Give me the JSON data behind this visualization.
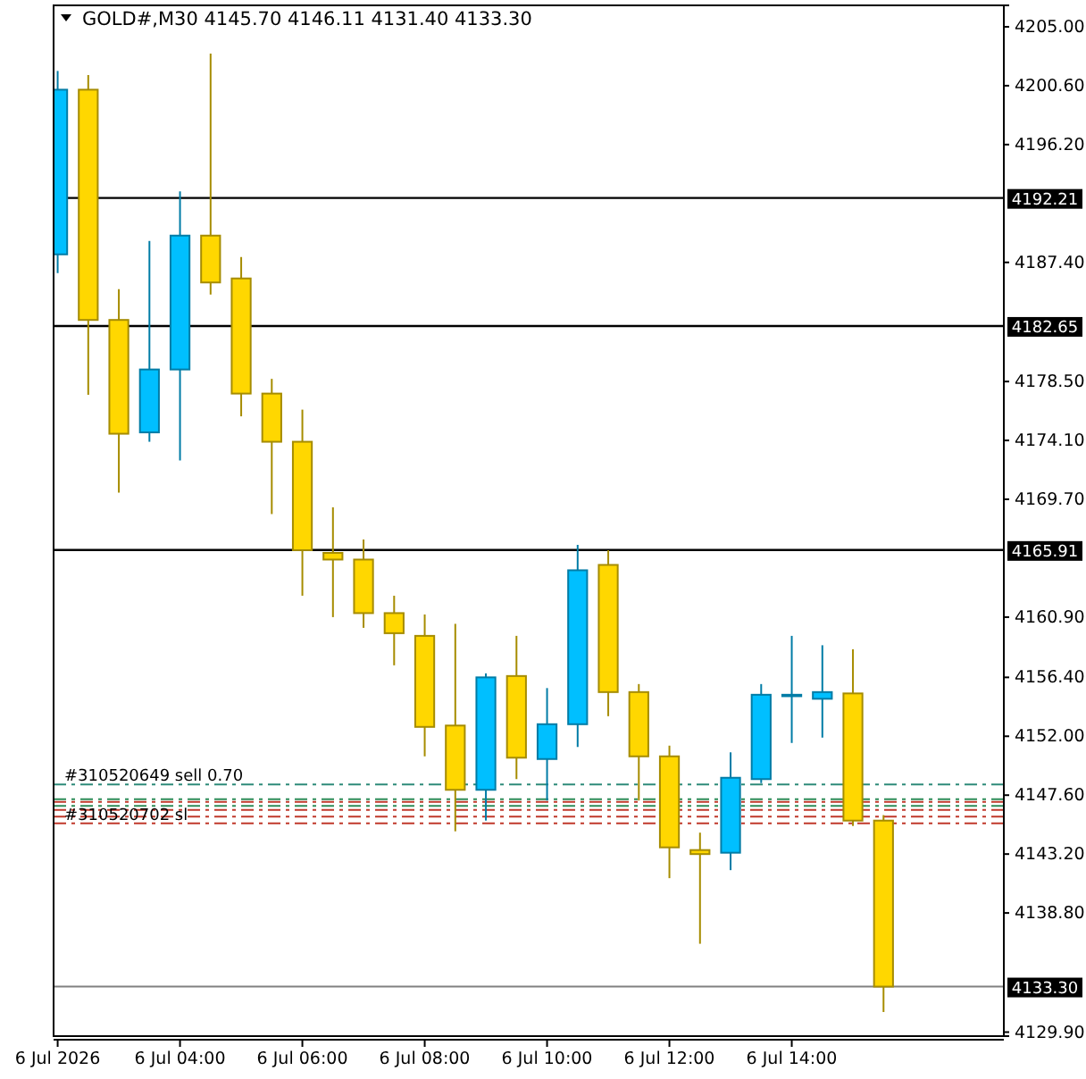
{
  "chart_data": {
    "type": "candlestick",
    "title": "GOLD#,M30  4145.70 4146.11 4131.40 4133.30",
    "x": [
      "2026-07-06T02:00",
      "2026-07-06T02:30",
      "2026-07-06T03:00",
      "2026-07-06T03:30",
      "2026-07-06T04:00",
      "2026-07-06T04:30",
      "2026-07-06T05:00",
      "2026-07-06T05:30",
      "2026-07-06T06:00",
      "2026-07-06T06:30",
      "2026-07-06T07:00",
      "2026-07-06T07:30",
      "2026-07-06T08:00",
      "2026-07-06T08:30",
      "2026-07-06T09:00",
      "2026-07-06T09:30",
      "2026-07-06T10:00",
      "2026-07-06T10:30",
      "2026-07-06T11:00",
      "2026-07-06T11:30",
      "2026-07-06T12:00",
      "2026-07-06T12:30",
      "2026-07-06T13:00",
      "2026-07-06T13:30",
      "2026-07-06T14:00",
      "2026-07-06T14:30",
      "2026-07-06T15:00",
      "2026-07-06T15:30"
    ],
    "ohlc": [
      [
        4188.0,
        4201.7,
        4186.6,
        4200.3
      ],
      [
        4200.3,
        4201.4,
        4177.5,
        4183.1
      ],
      [
        4183.1,
        4185.4,
        4170.2,
        4174.6
      ],
      [
        4174.7,
        4189.0,
        4174.0,
        4179.4
      ],
      [
        4179.4,
        4192.7,
        4172.6,
        4189.4
      ],
      [
        4189.4,
        4203.0,
        4185.0,
        4185.9
      ],
      [
        4186.2,
        4187.8,
        4175.9,
        4177.6
      ],
      [
        4177.6,
        4178.7,
        4168.6,
        4174.0
      ],
      [
        4174.0,
        4176.4,
        4162.5,
        4165.9
      ],
      [
        4165.7,
        4169.1,
        4160.9,
        4165.2
      ],
      [
        4165.2,
        4166.7,
        4160.1,
        4161.2
      ],
      [
        4161.2,
        4162.5,
        4157.3,
        4159.7
      ],
      [
        4159.5,
        4161.1,
        4150.5,
        4152.7
      ],
      [
        4152.8,
        4160.4,
        4144.9,
        4148.0
      ],
      [
        4148.0,
        4156.7,
        4145.7,
        4156.4
      ],
      [
        4156.5,
        4159.5,
        4148.8,
        4150.4
      ],
      [
        4150.3,
        4155.6,
        4147.2,
        4152.9
      ],
      [
        4152.9,
        4166.3,
        4151.2,
        4164.4
      ],
      [
        4164.8,
        4165.9,
        4153.5,
        4155.3
      ],
      [
        4155.3,
        4155.9,
        4147.2,
        4150.5
      ],
      [
        4150.5,
        4151.3,
        4141.4,
        4143.7
      ],
      [
        4143.5,
        4144.8,
        4136.5,
        4143.2
      ],
      [
        4143.3,
        4150.8,
        4142.0,
        4148.9
      ],
      [
        4148.8,
        4155.9,
        4148.5,
        4155.1
      ],
      [
        4155.1,
        4159.5,
        4151.5,
        4155.1
      ],
      [
        4154.8,
        4158.8,
        4151.9,
        4155.3
      ],
      [
        4155.2,
        4158.5,
        4145.3,
        4145.7
      ],
      [
        4145.7,
        4146.11,
        4131.4,
        4133.3
      ]
    ],
    "colors": [
      "#00bfff",
      "#ffd700",
      "#ffd700",
      "#00bfff",
      "#00bfff",
      "#ffd700",
      "#ffd700",
      "#ffd700",
      "#ffd700",
      "#ffd700",
      "#ffd700",
      "#ffd700",
      "#ffd700",
      "#ffd700",
      "#00bfff",
      "#ffd700",
      "#00bfff",
      "#00bfff",
      "#ffd700",
      "#ffd700",
      "#ffd700",
      "#ffd700",
      "#00bfff",
      "#00bfff",
      "#00bfff",
      "#00bfff",
      "#ffd700",
      "#ffd700"
    ],
    "xlim": [
      "2026-07-06T01:56",
      "2026-07-06T17:28"
    ],
    "xticks": [
      {
        "value": "2026-07-06T02:00",
        "label": "6 Jul 2026"
      },
      {
        "value": "2026-07-06T04:00",
        "label": "6 Jul 04:00"
      },
      {
        "value": "2026-07-06T06:00",
        "label": "6 Jul 06:00"
      },
      {
        "value": "2026-07-06T08:00",
        "label": "6 Jul 08:00"
      },
      {
        "value": "2026-07-06T10:00",
        "label": "6 Jul 10:00"
      },
      {
        "value": "2026-07-06T12:00",
        "label": "6 Jul 12:00"
      },
      {
        "value": "2026-07-06T14:00",
        "label": "6 Jul 14:00"
      }
    ],
    "ylim": [
      4129.6,
      4206.6
    ],
    "yticks": [
      {
        "value": 4205,
        "label": "4205.00"
      },
      {
        "value": 4200.6,
        "label": "4200.60"
      },
      {
        "value": 4196.2,
        "label": "4196.20"
      },
      {
        "value": 4187.4,
        "label": "4187.40"
      },
      {
        "value": 4178.5,
        "label": "4178.50"
      },
      {
        "value": 4174.1,
        "label": "4174.10"
      },
      {
        "value": 4169.7,
        "label": "4169.70"
      },
      {
        "value": 4160.9,
        "label": "4160.90"
      },
      {
        "value": 4156.4,
        "label": "4156.40"
      },
      {
        "value": 4152,
        "label": "4152.00"
      },
      {
        "value": 4147.6,
        "label": "4147.60"
      },
      {
        "value": 4143.2,
        "label": "4143.20"
      },
      {
        "value": 4138.8,
        "label": "4138.80"
      },
      {
        "value": 4129.9,
        "label": "4129.90"
      }
    ],
    "ref_lines": [
      {
        "axis": "y",
        "value": 4192.21,
        "label": "4192.21",
        "color": "#000000",
        "line_style": "solid"
      },
      {
        "axis": "y",
        "value": 4182.65,
        "label": "4182.65",
        "color": "#000000",
        "line_style": "solid"
      },
      {
        "axis": "y",
        "value": 4165.91,
        "label": "4165.91",
        "color": "#000000",
        "line_style": "solid"
      },
      {
        "axis": "y",
        "value": 4133.3,
        "label": "4133.30",
        "color": "#808080",
        "line_style": "solid"
      },
      {
        "axis": "y",
        "value": 4148.4,
        "label": "#310520649 sell 0.70",
        "color": "#2e8b7a",
        "line_style": "dashed"
      },
      {
        "axis": "y",
        "value": 4147.3,
        "color": "#2e8b57",
        "line_style": "dashed"
      },
      {
        "axis": "y",
        "value": 4147.1,
        "color": "#c0392b",
        "line_style": "dashed"
      },
      {
        "axis": "y",
        "value": 4146.8,
        "color": "#2e8b57",
        "line_style": "dashed"
      },
      {
        "axis": "y",
        "value": 4146.5,
        "color": "#c0392b",
        "line_style": "dashed"
      },
      {
        "axis": "y",
        "value": 4146.0,
        "color": "#c0392b",
        "line_style": "dashed"
      },
      {
        "axis": "y",
        "value": 4145.5,
        "label": "#310520702 sl",
        "color": "#c0392b",
        "line_style": "dashed"
      }
    ]
  }
}
